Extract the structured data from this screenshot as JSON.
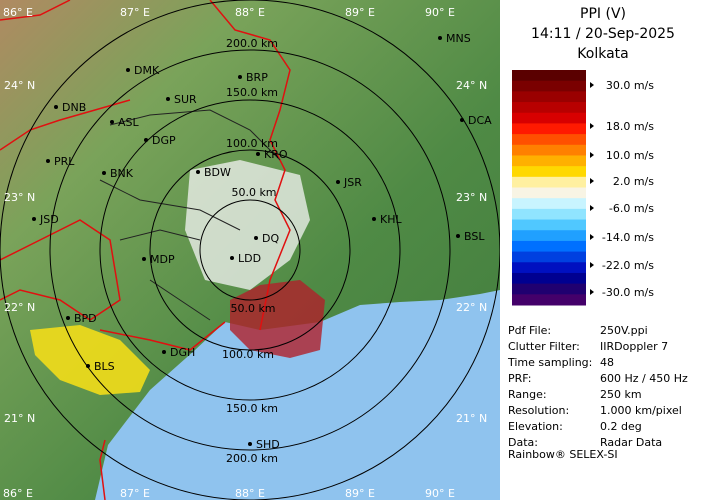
{
  "header": {
    "title": "PPI (V)",
    "time": "14:11 / 20-Sep-2025",
    "station": "Kolkata"
  },
  "legend": {
    "labels": [
      "30.0 m/s",
      "18.0 m/s",
      "10.0 m/s",
      "2.0 m/s",
      "-6.0 m/s",
      "-14.0 m/s",
      "-22.0 m/s",
      "-30.0 m/s"
    ]
  },
  "info": {
    "rows": [
      [
        "Pdf File:",
        "250V.ppi"
      ],
      [
        "Clutter Filter:",
        "IIRDoppler 7"
      ],
      [
        "Time sampling:",
        "48"
      ],
      [
        "PRF:",
        "600 Hz / 450 Hz"
      ],
      [
        "Range:",
        "250 km"
      ],
      [
        "Resolution:",
        "1.000 km/pixel"
      ],
      [
        "Elevation:",
        "0.2 deg"
      ],
      [
        "Data:",
        "Radar Data"
      ]
    ],
    "footer": "Rainbow® SELEX-SI"
  },
  "map": {
    "longitudes": [
      "86° E",
      "87° E",
      "88° E",
      "89° E",
      "90° E"
    ],
    "latitudes": [
      "24° N",
      "23° N",
      "22° N",
      "21° N"
    ],
    "range_labels": [
      "200.0 km",
      "150.0 km",
      "100.0 km",
      "50.0 km",
      "50.0 km",
      "100.0 km",
      "150.0 km",
      "200.0 km"
    ],
    "stations": [
      "MNS",
      "DMK",
      "BRP",
      "DNB",
      "SUR",
      "ASL",
      "DGP",
      "DCA",
      "KRO",
      "PRL",
      "BNK",
      "BDW",
      "JSR",
      "KHL",
      "JSD",
      "BSL",
      "DQ",
      "MDP",
      "LDD",
      "BPD",
      "DGH",
      "BLS",
      "SHD"
    ]
  }
}
